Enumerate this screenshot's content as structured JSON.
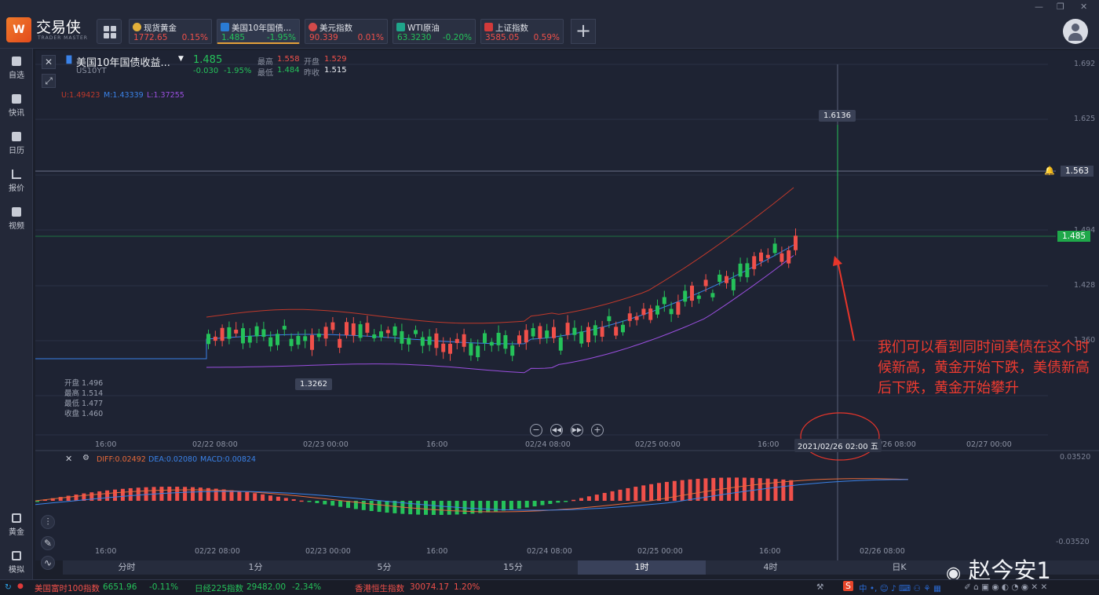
{
  "app": {
    "name": "交易侠",
    "sub": "TRADER MASTER"
  },
  "tickers": [
    {
      "name": "现货黄金",
      "value": "1772.65",
      "change": "0.15%",
      "color": "#e3b03a",
      "dir": "up"
    },
    {
      "name": "美国10年国债...",
      "value": "1.485",
      "change": "-1.95%",
      "color": "#2a7bd4",
      "dir": "down",
      "active": true
    },
    {
      "name": "美元指数",
      "value": "90.339",
      "change": "0.01%",
      "color": "#d24a4a",
      "dir": "up"
    },
    {
      "name": "WTI原油",
      "value": "63.3230",
      "change": "-0.20%",
      "color": "#1fa58a",
      "dir": "down"
    },
    {
      "name": "上证指数",
      "value": "3585.05",
      "change": "0.59%",
      "color": "#d23a3a",
      "dir": "up"
    }
  ],
  "nav": [
    {
      "label": "自选",
      "icon": "bookmark-icon"
    },
    {
      "label": "快讯",
      "icon": "news-icon"
    },
    {
      "label": "日历",
      "icon": "calendar-icon"
    },
    {
      "label": "报价",
      "icon": "quote-icon"
    },
    {
      "label": "视频",
      "icon": "video-icon"
    },
    {
      "label": "黄金",
      "icon": "gold-icon"
    },
    {
      "label": "模拟",
      "icon": "wallet-icon"
    }
  ],
  "header": {
    "title": "美国10年国债收益...",
    "code": "US10YT",
    "price": "1.485",
    "change": "-0.030",
    "change_pct": "-1.95%",
    "high_label": "最高",
    "high": "1.558",
    "low_label": "最低",
    "low": "1.484",
    "open_label": "开盘",
    "open": "1.529",
    "prev_label": "昨收",
    "prev": "1.515"
  },
  "indicators": {
    "u": "U:1.49423",
    "m": "M:1.43339",
    "l": "L:1.37255"
  },
  "ohlc_box": {
    "open": "开盘 1.496",
    "high": "最高 1.514",
    "low": "最低 1.477",
    "close": "收盘 1.460"
  },
  "macd": {
    "diff": "DIFF:0.02492",
    "dea": "DEA:0.02080",
    "macd": "MACD:0.00824"
  },
  "price_axis": [
    "1.692",
    "1.625",
    "1.563",
    "1.494",
    "1.428",
    "1.360"
  ],
  "macd_axis": [
    "0.03520",
    "-0.03520"
  ],
  "time_axis": [
    "16:00",
    "02/22 08:00",
    "02/23 00:00",
    "16:00",
    "02/24 08:00",
    "02/25 00:00",
    "16:00",
    "02/26 08:00",
    "02/27 00:00"
  ],
  "crosshair": {
    "time": "2021/02/26 02:00",
    "weekday": "五",
    "value": "1.6136"
  },
  "labels": {
    "low_mark": "1.3262",
    "line_price": "1.563",
    "current_price": "1.485"
  },
  "timeframes": [
    "分时",
    "1分",
    "5分",
    "15分",
    "1时",
    "4时",
    "日K"
  ],
  "active_timeframe": "1时",
  "annotation": "我们可以看到同时间美债在这个时候新高，黄金开始下跌，美债新高后下跌，黄金开始攀升",
  "watermark": "赵今安1",
  "statusbar": [
    {
      "name": "美国富时100指数",
      "value": "6651.96",
      "change": "-0.11%"
    },
    {
      "name": "日经225指数",
      "value": "29482.00",
      "change": "-2.34%"
    },
    {
      "name": "香港恒生指数",
      "value": "30074.17",
      "change": "1.20%"
    }
  ],
  "colors": {
    "up": "#f0504a",
    "down": "#25c25a",
    "mid": "#3a82e8",
    "upper": "#c0392b",
    "lower": "#9b4fe0",
    "macd_diff": "#e86a3a",
    "macd_dea": "#3a82e8"
  }
}
